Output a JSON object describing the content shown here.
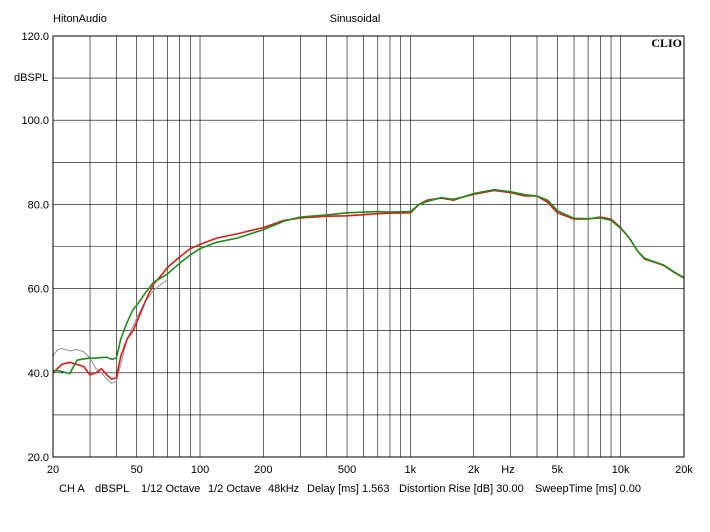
{
  "header": {
    "left_label": "HitonAudio",
    "center_label": "Sinusoidal",
    "brand": "CLIO"
  },
  "chart_data": {
    "type": "line",
    "title": "Sinusoidal",
    "xlabel": "Hz",
    "ylabel": "dBSPL",
    "x_scale": "log",
    "xlim": [
      20,
      20000
    ],
    "ylim": [
      20,
      120
    ],
    "grid": true,
    "x_tick_labels": [
      {
        "value": 20,
        "label": "20"
      },
      {
        "value": 50,
        "label": "50"
      },
      {
        "value": 100,
        "label": "100"
      },
      {
        "value": 200,
        "label": "200"
      },
      {
        "value": 500,
        "label": "500"
      },
      {
        "value": 1000,
        "label": "1k"
      },
      {
        "value": 2000,
        "label": "2k"
      },
      {
        "value": 5000,
        "label": "5k"
      },
      {
        "value": 10000,
        "label": "10k"
      },
      {
        "value": 20000,
        "label": "20k"
      }
    ],
    "y_tick_labels": [
      {
        "value": 120,
        "label": "120.0"
      },
      {
        "value": 100,
        "label": "100.0"
      },
      {
        "value": 80,
        "label": "80.0"
      },
      {
        "value": 60,
        "label": "60.0"
      },
      {
        "value": 40,
        "label": "40.0"
      },
      {
        "value": 20,
        "label": "20.0"
      }
    ],
    "series": [
      {
        "color": "#9a9a9a",
        "x": [
          20,
          21,
          22,
          24,
          26,
          28,
          30,
          32,
          34,
          36,
          38,
          40,
          42,
          45,
          50,
          55,
          60,
          65,
          70
        ],
        "y": [
          44,
          45.5,
          45.8,
          45.2,
          45.5,
          45,
          43.5,
          41,
          40,
          38.5,
          37.5,
          38,
          42,
          48,
          53,
          57,
          59.5,
          61,
          62
        ]
      },
      {
        "color": "#dd1a1a",
        "x": [
          20,
          21,
          22,
          24,
          26,
          28,
          30,
          32,
          34,
          36,
          38,
          40,
          42,
          45,
          48,
          50,
          55,
          60,
          65,
          70,
          80,
          90,
          100,
          120,
          150,
          200,
          250,
          300,
          400,
          500,
          700,
          800,
          1000,
          1100,
          1200,
          1400,
          1600,
          1800,
          2000,
          2500,
          3000,
          3500,
          4000,
          4500,
          5000,
          6000,
          7000,
          8000,
          9000,
          10000,
          11000,
          12000,
          13000,
          14000,
          16000,
          18000,
          20000
        ],
        "y": [
          40,
          41,
          42,
          42.5,
          42,
          41.5,
          39.5,
          40,
          41,
          39.5,
          38.5,
          38.8,
          44,
          48,
          50,
          52,
          57,
          61,
          63,
          65,
          67.5,
          69.5,
          70.5,
          72,
          73,
          74.5,
          76.2,
          76.8,
          77.2,
          77.3,
          77.8,
          77.9,
          78.0,
          80.0,
          81.0,
          81.5,
          81.0,
          81.8,
          82.4,
          83.3,
          82.8,
          82.0,
          82.0,
          80.5,
          78.0,
          76.5,
          76.5,
          77.0,
          76.5,
          74.5,
          72.0,
          69.0,
          67.0,
          66.5,
          65.5,
          63.8,
          62.5
        ]
      },
      {
        "color": "#1c8c1c",
        "x": [
          20,
          21,
          22,
          24,
          26,
          28,
          30,
          32,
          34,
          36,
          38,
          40,
          42,
          45,
          48,
          50,
          55,
          60,
          65,
          70,
          80,
          90,
          100,
          120,
          150,
          200,
          250,
          300,
          400,
          500,
          700,
          800,
          1000,
          1100,
          1200,
          1400,
          1600,
          1800,
          2000,
          2500,
          3000,
          3500,
          4000,
          4500,
          5000,
          6000,
          7000,
          8000,
          9000,
          10000,
          11000,
          12000,
          13000,
          14000,
          16000,
          18000,
          20000
        ],
        "y": [
          40.5,
          40.5,
          40.3,
          39.8,
          43,
          43.3,
          43.5,
          43.5,
          43.6,
          43.7,
          43.2,
          43.5,
          48,
          52,
          55,
          56,
          59,
          61.5,
          62.5,
          63.5,
          66,
          68,
          69.5,
          71,
          72,
          74,
          76,
          77,
          77.5,
          78,
          78.3,
          78.2,
          78.3,
          80.0,
          80.7,
          81.6,
          81.2,
          81.8,
          82.6,
          83.5,
          83.0,
          82.3,
          82.0,
          81.0,
          78.5,
          76.7,
          76.6,
          76.8,
          76.2,
          74.3,
          72.0,
          69.0,
          67.2,
          66.6,
          65.6,
          63.9,
          62.6
        ]
      }
    ]
  },
  "footer": {
    "items": [
      "CH A",
      "dBSPL",
      "1/12 Octave",
      "1/2 Octave",
      "48kHz",
      "Delay [ms] 1.563",
      "Distortion Rise [dB] 30.00",
      "SweepTime [ms] 0.00"
    ]
  }
}
